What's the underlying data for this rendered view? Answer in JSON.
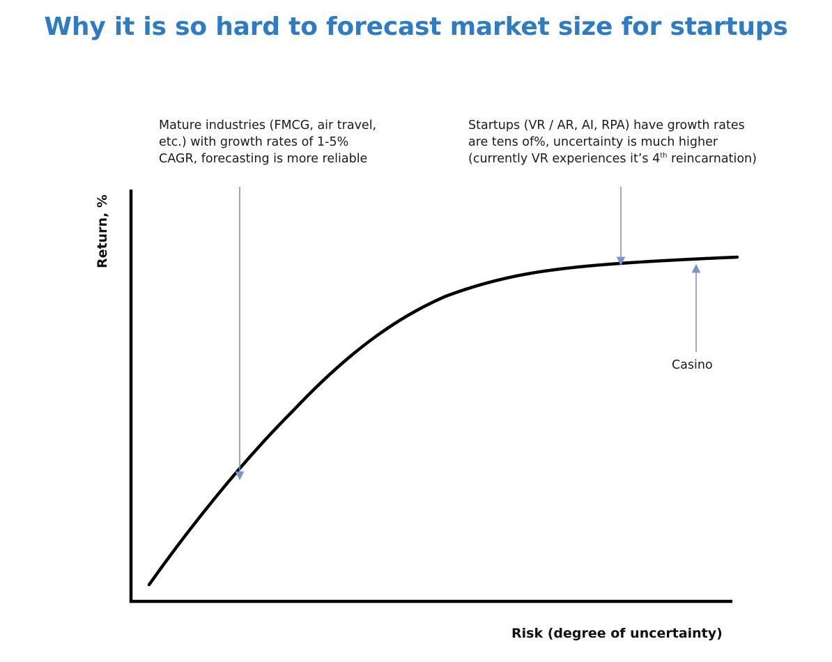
{
  "title": "Why it is so hard to forecast market size for startups",
  "notes": {
    "mature": [
      "Mature industries (FMCG, air travel,",
      "etc.) with growth rates of 1-5%",
      "CAGR, forecasting is more reliable"
    ],
    "startups": {
      "line1": "Startups (VR / AR, AI, RPA) have growth rates",
      "line2": "are tens of%, uncertainty is much higher",
      "line3_before": "(currently  VR experiences it’s 4",
      "line3_sup": "th",
      "line3_after": " reincarnation)"
    },
    "casino": "Casino"
  },
  "axes": {
    "x_label": "Risk (degree of uncertainty)",
    "y_label": "Return, %"
  },
  "colors": {
    "title": "#2e7cc4",
    "arrow": "#7a93c8",
    "curve": "#000000",
    "axis": "#000000"
  }
}
